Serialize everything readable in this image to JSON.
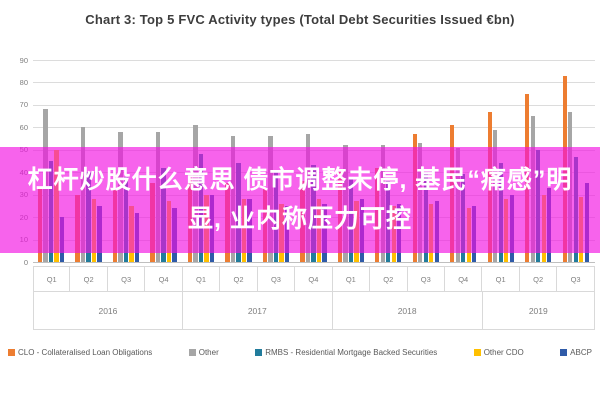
{
  "chart_data": {
    "type": "bar",
    "title": "Chart 3: Top 5 FVC Activity types (Total Debt Securities Issued €bn)",
    "categories": [
      "Q1",
      "Q2",
      "Q3",
      "Q4",
      "Q1",
      "Q2",
      "Q3",
      "Q4",
      "Q1",
      "Q2",
      "Q3",
      "Q4",
      "Q1",
      "Q2",
      "Q3"
    ],
    "year_groups": [
      {
        "label": "2016",
        "quarters": 4
      },
      {
        "label": "2017",
        "quarters": 4
      },
      {
        "label": "2018",
        "quarters": 4
      },
      {
        "label": "2019",
        "quarters": 3
      }
    ],
    "series": [
      {
        "name": "CLO - Collateralised Loan Obligations",
        "color": "#ED7D31",
        "values": [
          34,
          30,
          32,
          35,
          38,
          35,
          33,
          36,
          40,
          42,
          57,
          61,
          67,
          75,
          83
        ]
      },
      {
        "name": "Other",
        "color": "#A6A6A6",
        "values": [
          68,
          60,
          58,
          58,
          61,
          56,
          56,
          57,
          52,
          52,
          53,
          51,
          59,
          65,
          67
        ]
      },
      {
        "name": "RMBS - Residential Mortgage Backed Securities",
        "color": "#217C9C",
        "values": [
          45,
          40,
          38,
          42,
          48,
          44,
          41,
          43,
          38,
          36,
          40,
          39,
          44,
          50,
          47
        ]
      },
      {
        "name": "Other CDO",
        "color": "#FFC000",
        "values": [
          50,
          28,
          25,
          27,
          30,
          28,
          26,
          28,
          27,
          25,
          26,
          24,
          28,
          30,
          29
        ]
      },
      {
        "name": "ABCP",
        "color": "#2F5BA8",
        "values": [
          20,
          25,
          22,
          24,
          30,
          28,
          25,
          26,
          28,
          26,
          27,
          25,
          30,
          33,
          35
        ]
      }
    ],
    "ylim": [
      0,
      90
    ],
    "ytick_step": 10,
    "grid": "horizontal",
    "legend_position": "bottom"
  },
  "overlay": {
    "color": "rgba(243,16,226,0.65)",
    "text_color": "#FFFFFF",
    "lines": [
      "杠杆炒股什么意思 债市调整未停, 基民“痛感”明",
      "显, 业内称压力可控"
    ]
  }
}
